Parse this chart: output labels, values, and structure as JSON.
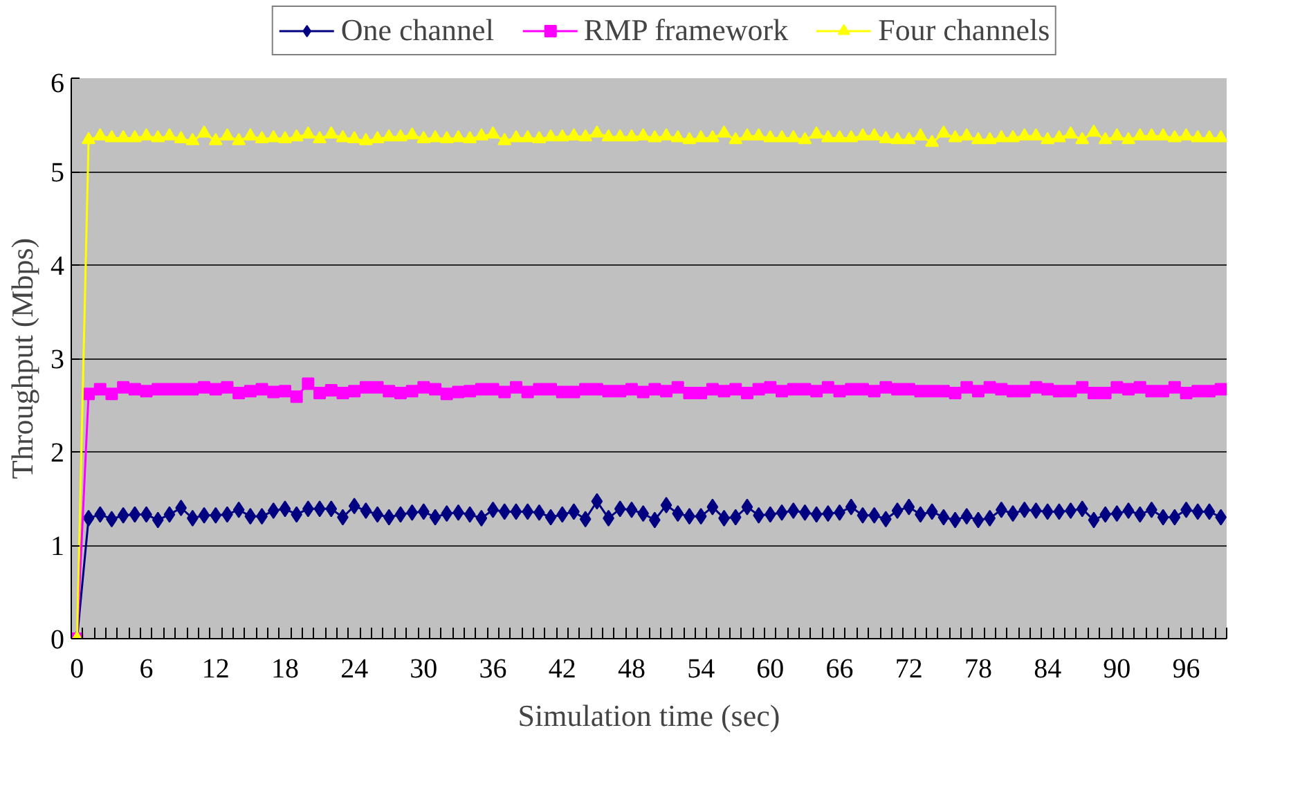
{
  "chart_data": {
    "type": "line",
    "xlabel": "Simulation time (sec)",
    "ylabel": "Throughput (Mbps)",
    "categories": [
      "0",
      null,
      null,
      null,
      null,
      null,
      "6",
      null,
      null,
      null,
      null,
      null,
      "12",
      null,
      null,
      null,
      null,
      null,
      "18",
      null,
      null,
      null,
      null,
      null,
      "24",
      null,
      null,
      null,
      null,
      null,
      "30",
      null,
      null,
      null,
      null,
      null,
      "36",
      null,
      null,
      null,
      null,
      null,
      "42",
      null,
      null,
      null,
      null,
      null,
      "48",
      null,
      null,
      null,
      null,
      null,
      "54",
      null,
      null,
      null,
      null,
      null,
      "60",
      null,
      null,
      null,
      null,
      null,
      "66",
      null,
      null,
      null,
      null,
      null,
      "72",
      null,
      null,
      null,
      null,
      null,
      "78",
      null,
      null,
      null,
      null,
      null,
      "84",
      null,
      null,
      null,
      null,
      null,
      "90",
      null,
      null,
      null,
      null,
      null,
      "96",
      null,
      null,
      null
    ],
    "series": [
      {
        "name": "One channel",
        "color": "#000080",
        "marker": "diamond",
        "values": [
          0,
          1.29,
          1.33,
          1.28,
          1.32,
          1.33,
          1.33,
          1.27,
          1.33,
          1.4,
          1.29,
          1.32,
          1.32,
          1.33,
          1.38,
          1.31,
          1.31,
          1.37,
          1.39,
          1.33,
          1.39,
          1.39,
          1.39,
          1.3,
          1.42,
          1.37,
          1.33,
          1.3,
          1.33,
          1.35,
          1.36,
          1.3,
          1.34,
          1.35,
          1.33,
          1.29,
          1.38,
          1.36,
          1.36,
          1.36,
          1.35,
          1.3,
          1.33,
          1.36,
          1.28,
          1.47,
          1.29,
          1.39,
          1.38,
          1.34,
          1.27,
          1.43,
          1.34,
          1.31,
          1.31,
          1.41,
          1.29,
          1.3,
          1.41,
          1.32,
          1.33,
          1.35,
          1.37,
          1.35,
          1.33,
          1.34,
          1.35,
          1.41,
          1.32,
          1.32,
          1.28,
          1.37,
          1.41,
          1.33,
          1.36,
          1.3,
          1.27,
          1.31,
          1.27,
          1.29,
          1.38,
          1.34,
          1.38,
          1.37,
          1.36,
          1.36,
          1.37,
          1.39,
          1.27,
          1.33,
          1.34,
          1.37,
          1.33,
          1.38,
          1.3,
          1.3,
          1.38,
          1.36,
          1.36,
          1.3
        ]
      },
      {
        "name": "RMP framework",
        "color": "#ff00ff",
        "marker": "square",
        "values": [
          0,
          2.62,
          2.67,
          2.62,
          2.69,
          2.67,
          2.65,
          2.67,
          2.67,
          2.67,
          2.67,
          2.69,
          2.67,
          2.69,
          2.63,
          2.65,
          2.67,
          2.64,
          2.65,
          2.59,
          2.73,
          2.63,
          2.66,
          2.63,
          2.65,
          2.69,
          2.69,
          2.65,
          2.63,
          2.65,
          2.69,
          2.67,
          2.62,
          2.64,
          2.65,
          2.67,
          2.67,
          2.64,
          2.69,
          2.64,
          2.67,
          2.67,
          2.64,
          2.64,
          2.67,
          2.67,
          2.65,
          2.65,
          2.67,
          2.64,
          2.67,
          2.65,
          2.69,
          2.63,
          2.63,
          2.67,
          2.65,
          2.67,
          2.63,
          2.67,
          2.69,
          2.65,
          2.67,
          2.67,
          2.65,
          2.69,
          2.65,
          2.67,
          2.67,
          2.65,
          2.69,
          2.67,
          2.67,
          2.65,
          2.65,
          2.65,
          2.63,
          2.69,
          2.65,
          2.69,
          2.67,
          2.65,
          2.65,
          2.69,
          2.67,
          2.65,
          2.65,
          2.69,
          2.63,
          2.63,
          2.69,
          2.67,
          2.69,
          2.65,
          2.65,
          2.69,
          2.63,
          2.65,
          2.65,
          2.67
        ]
      },
      {
        "name": "Four channels",
        "color": "#ffff00",
        "marker": "triangle",
        "values": [
          0,
          5.34,
          5.38,
          5.36,
          5.36,
          5.36,
          5.38,
          5.36,
          5.38,
          5.35,
          5.33,
          5.41,
          5.33,
          5.38,
          5.33,
          5.38,
          5.35,
          5.36,
          5.35,
          5.37,
          5.4,
          5.35,
          5.4,
          5.36,
          5.35,
          5.33,
          5.35,
          5.37,
          5.37,
          5.39,
          5.35,
          5.36,
          5.35,
          5.36,
          5.35,
          5.38,
          5.4,
          5.33,
          5.36,
          5.36,
          5.35,
          5.37,
          5.37,
          5.38,
          5.37,
          5.41,
          5.37,
          5.37,
          5.37,
          5.38,
          5.36,
          5.38,
          5.36,
          5.34,
          5.36,
          5.36,
          5.41,
          5.34,
          5.38,
          5.38,
          5.36,
          5.36,
          5.36,
          5.34,
          5.4,
          5.36,
          5.36,
          5.36,
          5.38,
          5.38,
          5.35,
          5.34,
          5.34,
          5.38,
          5.31,
          5.41,
          5.36,
          5.38,
          5.34,
          5.34,
          5.36,
          5.36,
          5.38,
          5.38,
          5.34,
          5.36,
          5.4,
          5.34,
          5.42,
          5.34,
          5.38,
          5.34,
          5.38,
          5.38,
          5.38,
          5.36,
          5.38,
          5.36,
          5.36,
          5.36
        ]
      }
    ],
    "ylim": [
      0,
      6
    ],
    "yticks": [
      0,
      1,
      2,
      3,
      4,
      5,
      6
    ],
    "grid": "y",
    "legend": "top",
    "line_style": "solid"
  }
}
